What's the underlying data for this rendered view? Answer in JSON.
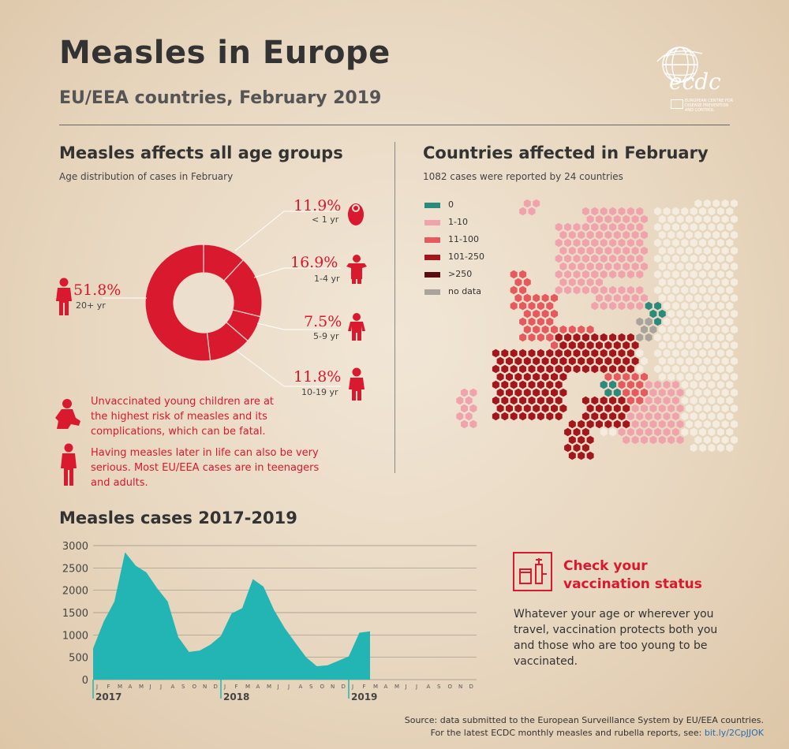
{
  "header": {
    "title": "Measles in Europe",
    "subtitle": "EU/EEA countries, February 2019",
    "logo_text": "ecdc",
    "logo_caption": "EUROPEAN CENTRE FOR DISEASE PREVENTION AND CONTROL"
  },
  "age_section": {
    "heading": "Measles affects all age groups",
    "caption": "Age distribution of cases in February"
  },
  "map_section": {
    "heading": "Countries affected in February",
    "caption": "1082 cases were reported by 24 countries",
    "legend": [
      {
        "label": "0",
        "color": "#2a8a7c"
      },
      {
        "label": "1-10",
        "color": "#f0a3ad"
      },
      {
        "label": "11-100",
        "color": "#e65a5e"
      },
      {
        "label": "101-250",
        "color": "#a3171c"
      },
      {
        "label": ">250",
        "color": "#5a0c10"
      },
      {
        "label": "no data",
        "color": "#a9a39b"
      }
    ]
  },
  "notes": {
    "young": "Unvaccinated young children are at the highest risk of measles and its complications, which can be fatal.",
    "adults": "Having measles later in life can also be very serious. Most EU/EEA cases are in teenagers and adults."
  },
  "trend_section": {
    "heading": "Measles cases 2017-2019"
  },
  "cta": {
    "title_line1": "Check your",
    "title_line2": "vaccination status",
    "body": "Whatever your age or wherever you travel, vaccination protects both you and those who are too young to be vaccinated."
  },
  "footer": {
    "source_line1": "Source: data submitted to the European Surveillance System by EU/EEA countries.",
    "source_line2": "For the latest ECDC monthly measles and rubella reports, see:",
    "link_text": "bit.ly/2CpJJOK"
  },
  "colors": {
    "accent": "#d8192e",
    "area": "#22b5b3"
  },
  "chart_data": [
    {
      "type": "pie",
      "title": "Age distribution of cases in February",
      "series": [
        {
          "label": "< 1 yr",
          "pct_label": "11.9%",
          "value": 11.9,
          "icon": "baby-icon"
        },
        {
          "label": "1-4 yr",
          "pct_label": "16.9%",
          "value": 16.9,
          "icon": "toddler-icon"
        },
        {
          "label": "5-9 yr",
          "pct_label": "7.5%",
          "value": 7.5,
          "icon": "child-icon"
        },
        {
          "label": "10-19 yr",
          "pct_label": "11.8%",
          "value": 11.8,
          "icon": "teen-icon"
        },
        {
          "label": "20+ yr",
          "pct_label": "51.8%",
          "value": 51.8,
          "icon": "adult-icon"
        }
      ]
    },
    {
      "type": "area",
      "title": "Measles cases 2017-2019",
      "ylim": [
        0,
        3000
      ],
      "yticks": [
        "0",
        "500",
        "1000",
        "1500",
        "2000",
        "2500",
        "3000"
      ],
      "month_letters": [
        "J",
        "F",
        "M",
        "A",
        "M",
        "J",
        "J",
        "A",
        "S",
        "O",
        "N",
        "D"
      ],
      "years": [
        "2017",
        "2018",
        "2019"
      ],
      "values": [
        700,
        1300,
        1750,
        2850,
        2550,
        2400,
        2050,
        1750,
        950,
        620,
        650,
        780,
        980,
        1480,
        1600,
        2250,
        2080,
        1550,
        1150,
        820,
        500,
        300,
        320,
        420,
        520,
        1050,
        1080
      ]
    }
  ]
}
